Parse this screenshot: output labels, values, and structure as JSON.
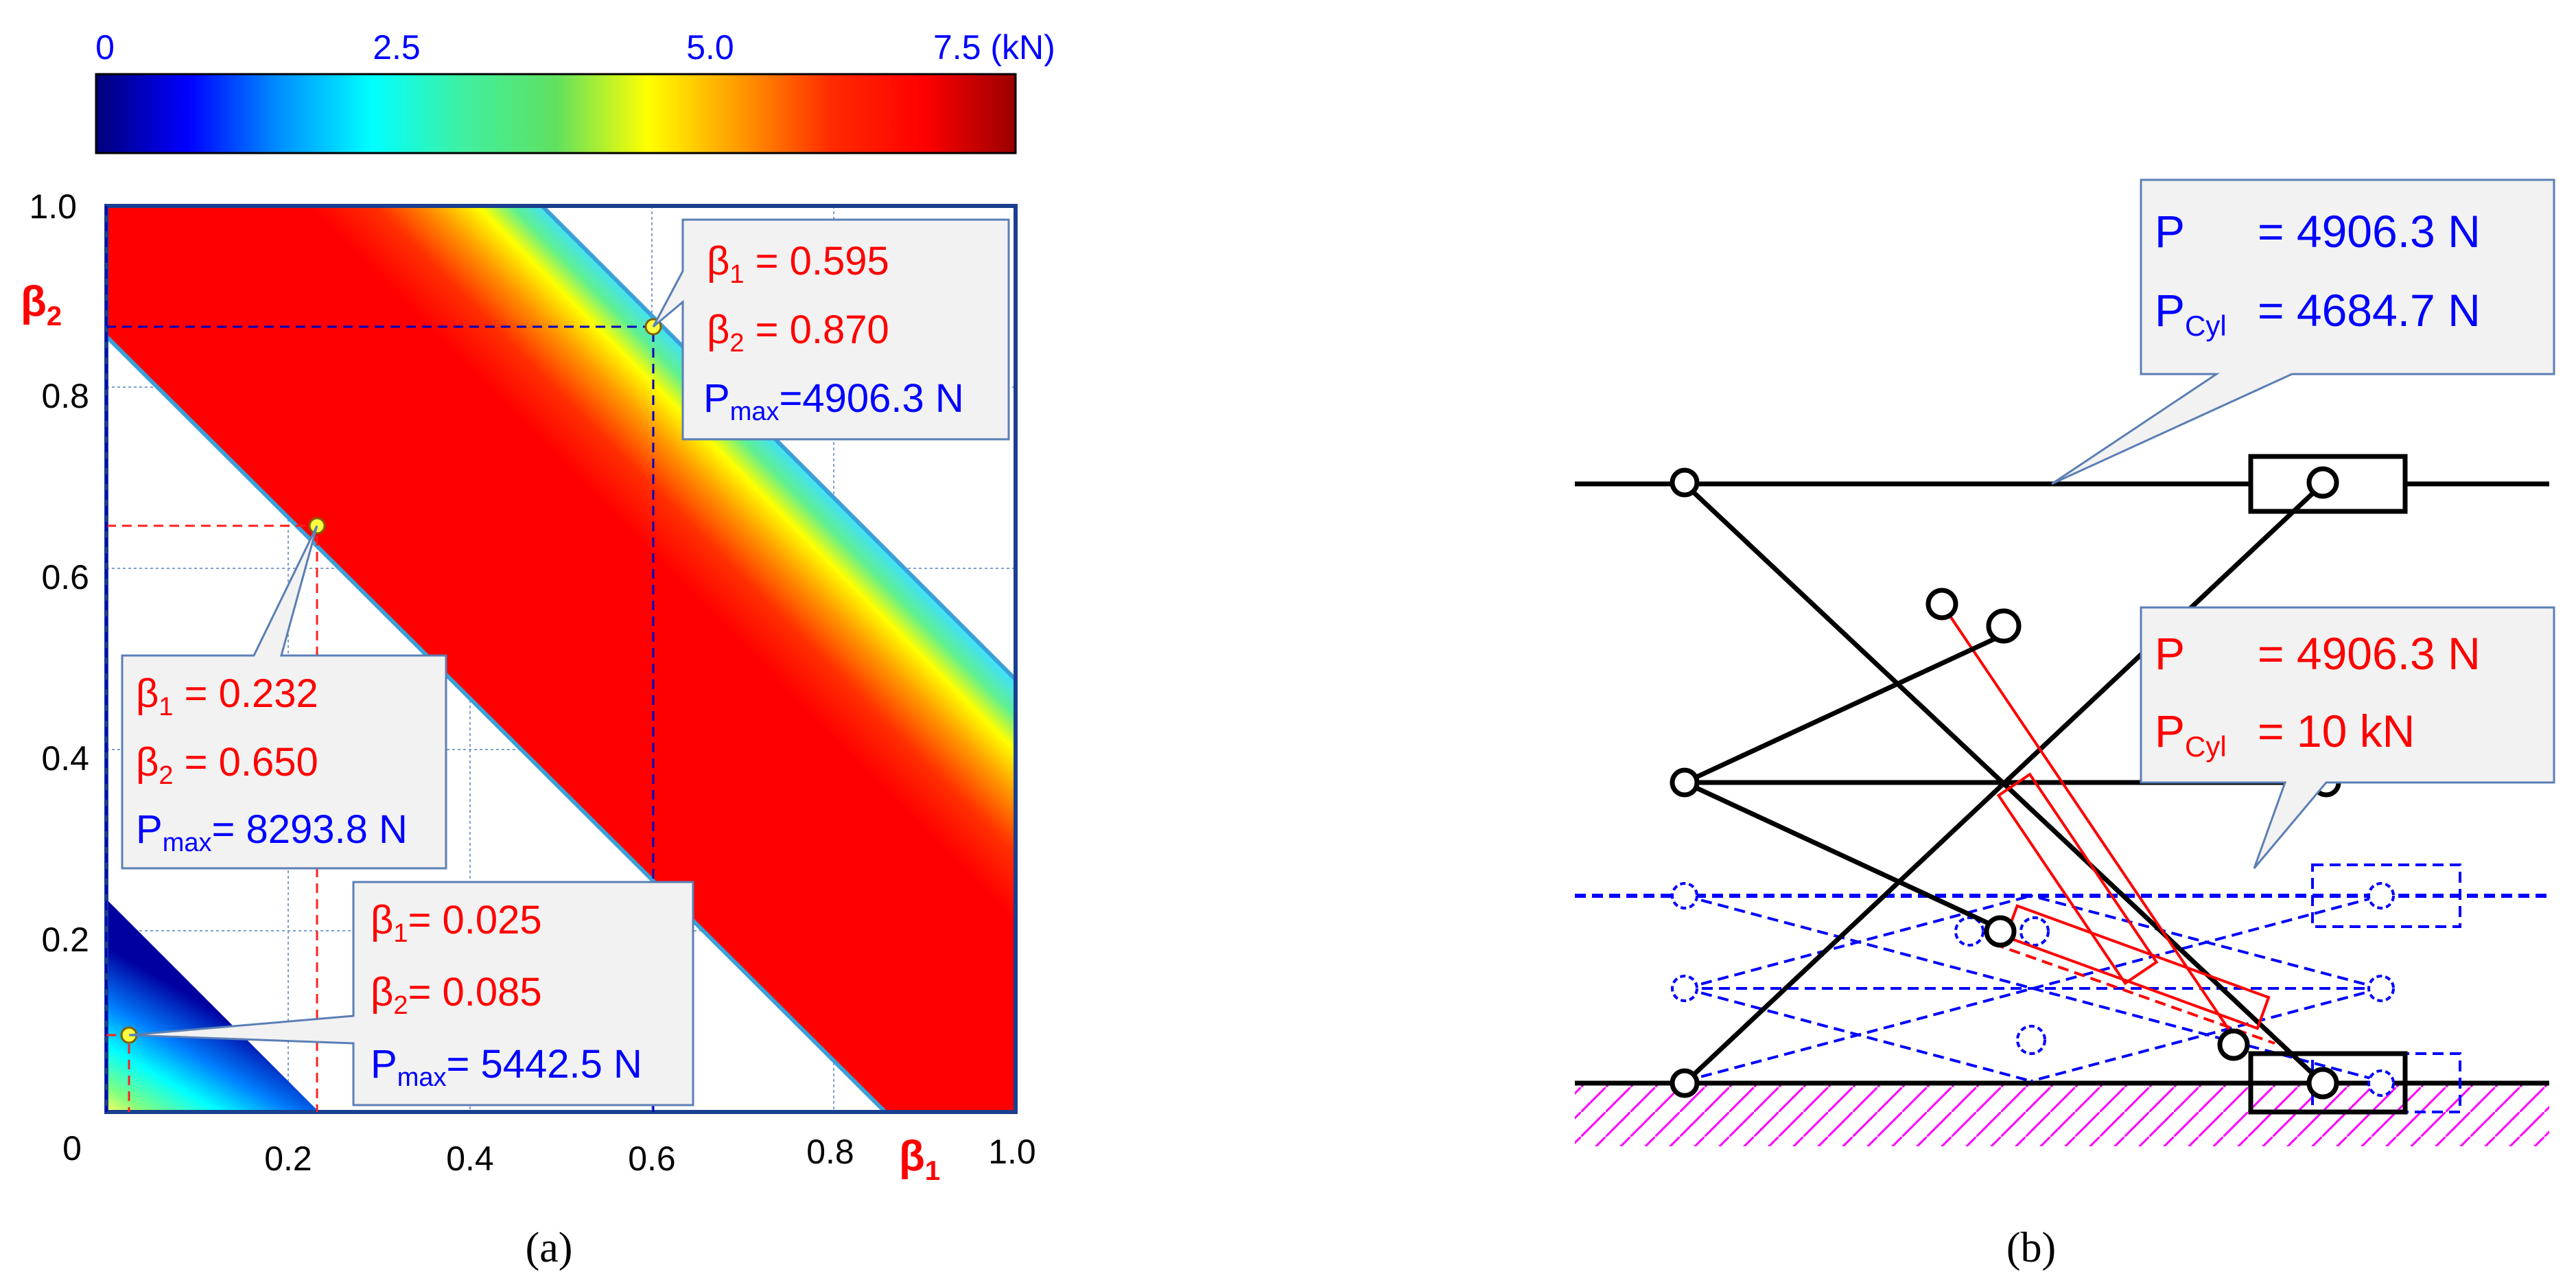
{
  "colorbar": {
    "ticks": [
      "0",
      "2.5",
      "5.0",
      "7.5 (kN)"
    ],
    "stops": [
      "#00007a",
      "#0000ff",
      "#0090ff",
      "#00ffff",
      "#40f0a0",
      "#60e060",
      "#ffff00",
      "#ff9a00",
      "#ff2a00",
      "#ff0000",
      "#9a0000"
    ]
  },
  "panel_a": {
    "x_ticks": [
      "0",
      "0.2",
      "0.4",
      "0.6",
      "0.8",
      "1.0"
    ],
    "y_ticks": [
      "1.0",
      "0.8",
      "0.6",
      "0.4",
      "0.2"
    ],
    "x_axis_symbol": "β",
    "x_axis_sub": "1",
    "y_axis_symbol": "β",
    "y_axis_sub": "2",
    "caption": "(a)"
  },
  "chart_data": {
    "type": "heatmap",
    "x": "β1",
    "y": "β2",
    "xlim": [
      0,
      1.0
    ],
    "ylim": [
      0,
      1.0
    ],
    "colorbar_range_kN": [
      0,
      7.5
    ],
    "points": [
      {
        "beta1": 0.595,
        "beta2": 0.87,
        "pmax": "4906.3 N"
      },
      {
        "beta1": 0.232,
        "beta2": 0.65,
        "pmax": "8293.8 N"
      },
      {
        "beta1": 0.025,
        "beta2": 0.085,
        "pmax": "5442.5 N"
      }
    ]
  },
  "callouts_a": [
    {
      "b1_sym": "β",
      "b1_sub": "1",
      "b1_val": " = 0.595",
      "b2_sym": "β",
      "b2_sub": "2",
      "b2_val": " = 0.870",
      "p_sym": "P",
      "p_sub": "max",
      "p_val": "=4906.3 N"
    },
    {
      "b1_sym": "β",
      "b1_sub": "1",
      "b1_val": " = 0.232",
      "b2_sym": "β",
      "b2_sub": "2",
      "b2_val": " = 0.650",
      "p_sym": "P",
      "p_sub": "max",
      "p_val": "= 8293.8 N"
    },
    {
      "b1_sym": "β",
      "b1_sub": "1",
      "b1_val": "= 0.025",
      "b2_sym": "β",
      "b2_sub": "2",
      "b2_val": "= 0.085",
      "p_sym": "P",
      "p_sub": "max",
      "p_val": "= 5442.5 N"
    }
  ],
  "panel_b": {
    "callout_blue": {
      "p_label": "P",
      "p_val": "= 4906.3 N",
      "cyl_label": "P",
      "cyl_sub": "Cyl",
      "cyl_val": "= 4684.7 N"
    },
    "callout_red": {
      "p_label": "P",
      "p_val": "= 4906.3 N",
      "cyl_label": "P",
      "cyl_sub": "Cyl",
      "cyl_val": "= 10 kN"
    },
    "caption": "(b)"
  },
  "colors": {
    "red": "#ff0000",
    "blue": "#0000ff",
    "black": "#000000",
    "callout_fill": "#f2f2f2"
  }
}
